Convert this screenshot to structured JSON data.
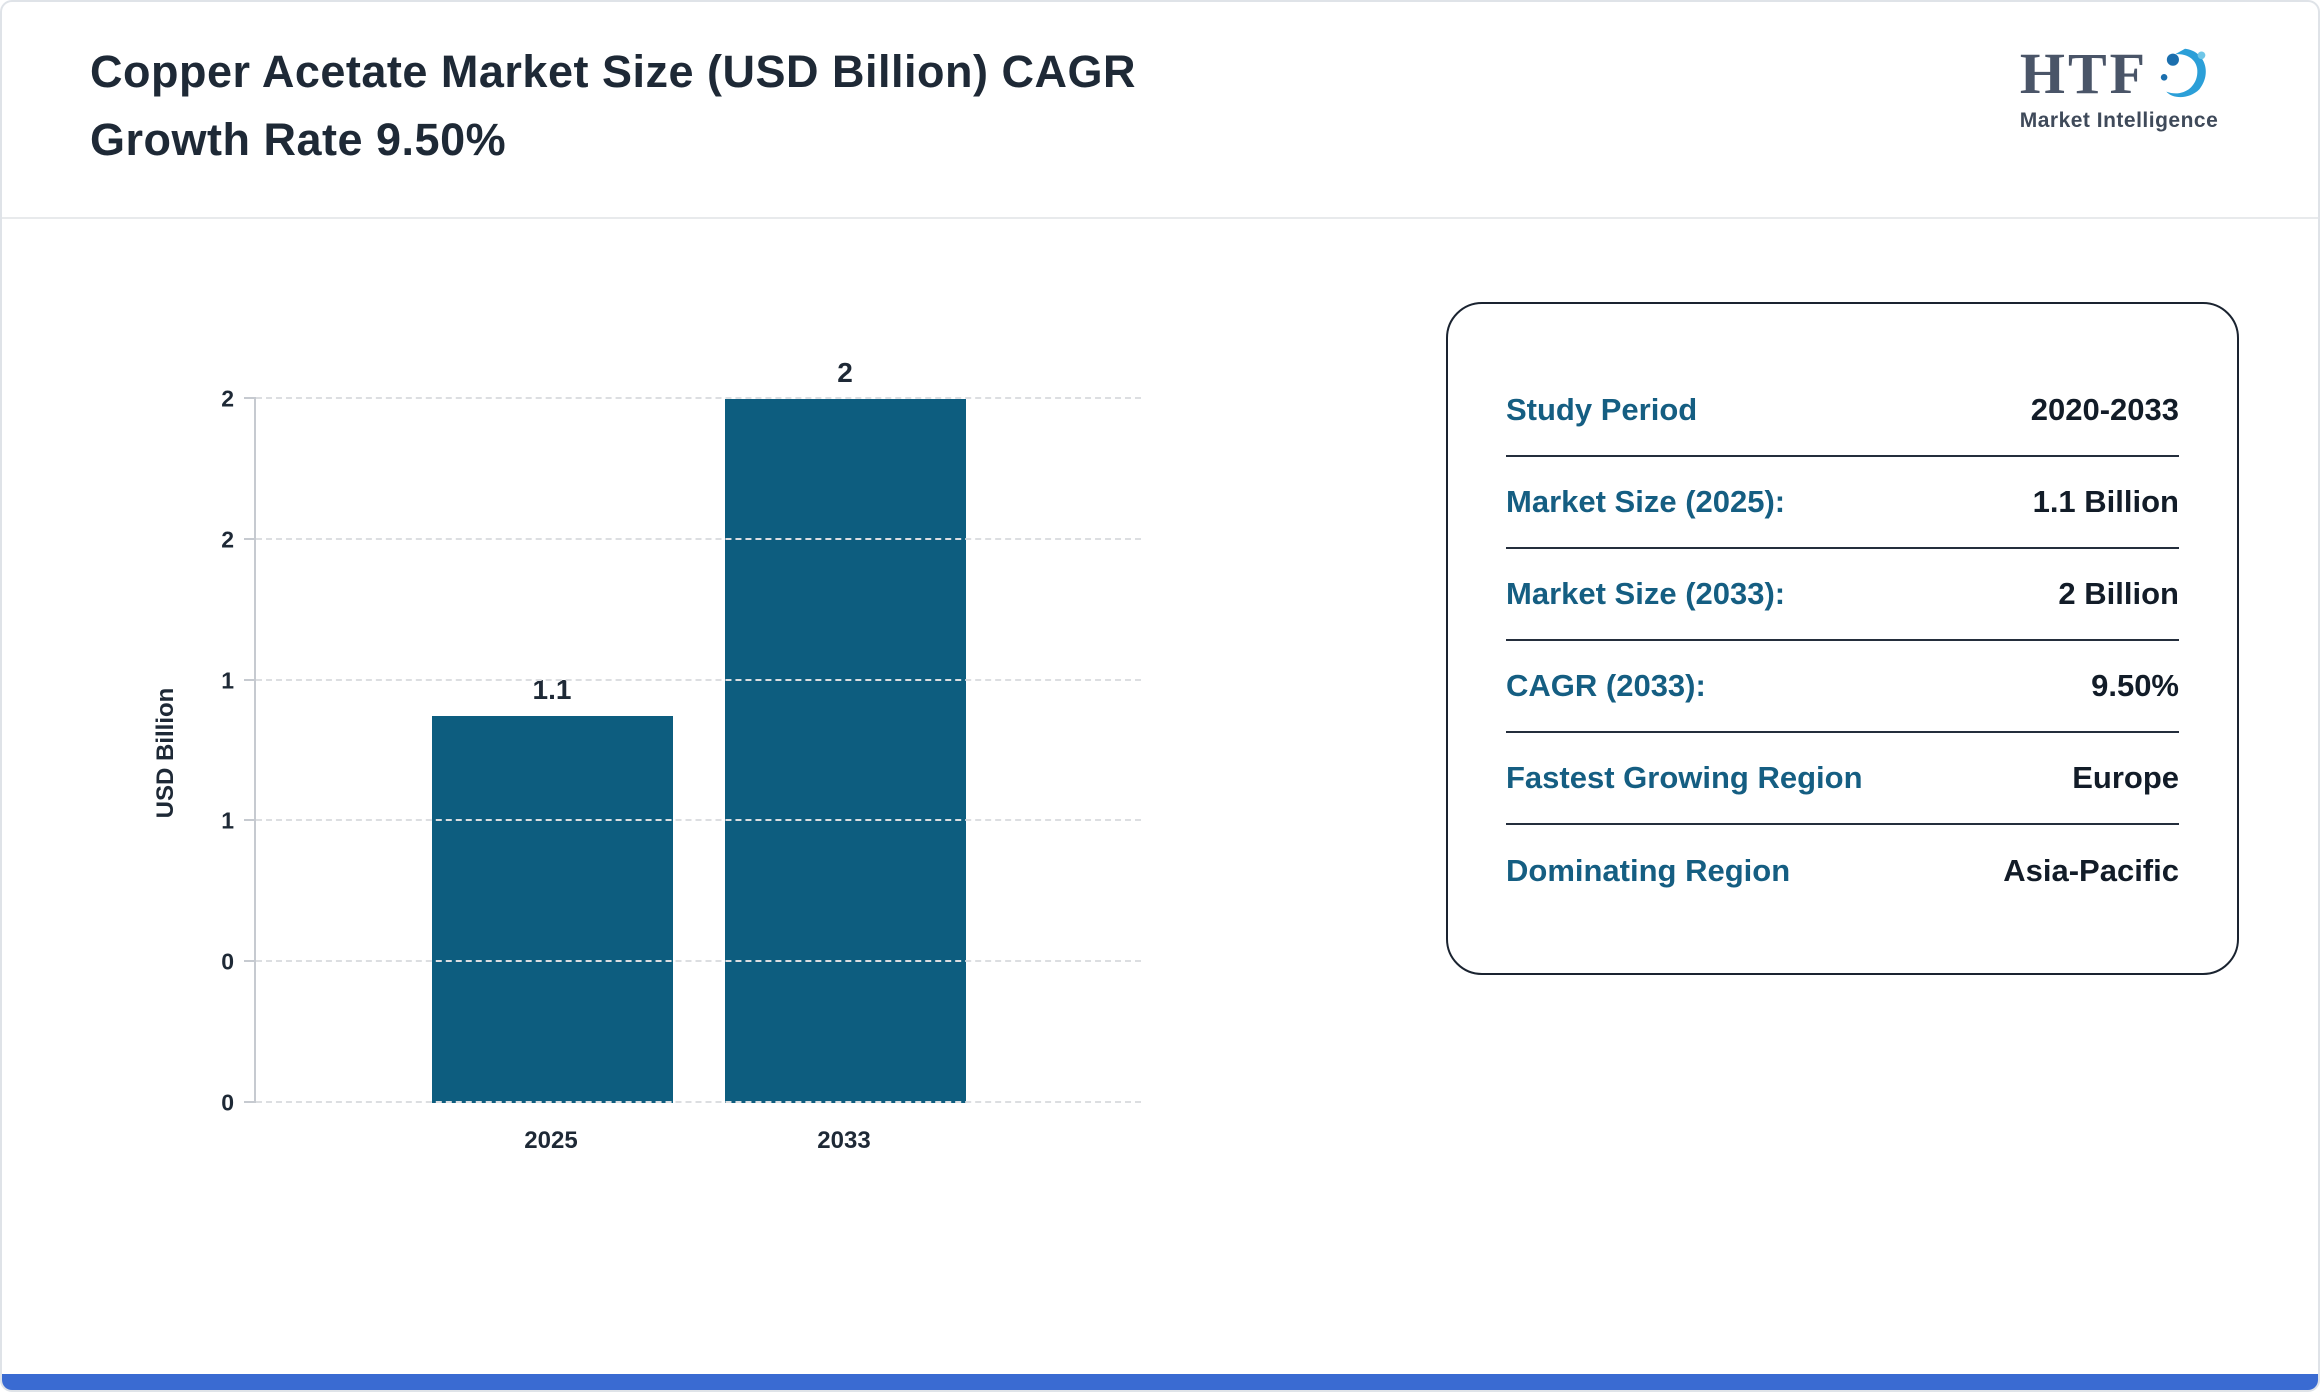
{
  "header": {
    "title_line1": "Copper Acetate Market Size (USD Billion) CAGR",
    "title_line2": "Growth Rate 9.50%"
  },
  "logo": {
    "monogram": "HTF",
    "subtitle": "Market Intelligence"
  },
  "chart_data": {
    "type": "bar",
    "categories": [
      "2025",
      "2033"
    ],
    "values": [
      1.1,
      2
    ],
    "value_labels": [
      "1.1",
      "2"
    ],
    "title": "Copper Acetate Market Size (USD Billion) CAGR Growth Rate 9.50%",
    "xlabel": "",
    "ylabel": "USD Billion",
    "ylim": [
      0,
      2
    ],
    "yticks": [
      0,
      0.4,
      0.8,
      1.2,
      1.6,
      2
    ],
    "ytick_labels": [
      "0",
      "0",
      "1",
      "1",
      "2",
      "2"
    ],
    "grid": true,
    "legend": false,
    "bar_color": "#0d5d7f"
  },
  "card": {
    "rows": [
      {
        "label": "Study Period",
        "value": "2020-2033"
      },
      {
        "label": "Market Size (2025):",
        "value": "1.1 Billion"
      },
      {
        "label": "Market Size (2033):",
        "value": "2 Billion"
      },
      {
        "label": "CAGR (2033):",
        "value": "9.50%"
      },
      {
        "label": "Fastest Growing Region",
        "value": "Europe"
      },
      {
        "label": "Dominating Region",
        "value": "Asia-Pacific"
      }
    ]
  },
  "colors": {
    "bar": "#0d5d7f",
    "label_teal": "#155e82",
    "text_dark": "#1e2936",
    "bottom_accent": "#3a6bd2"
  }
}
